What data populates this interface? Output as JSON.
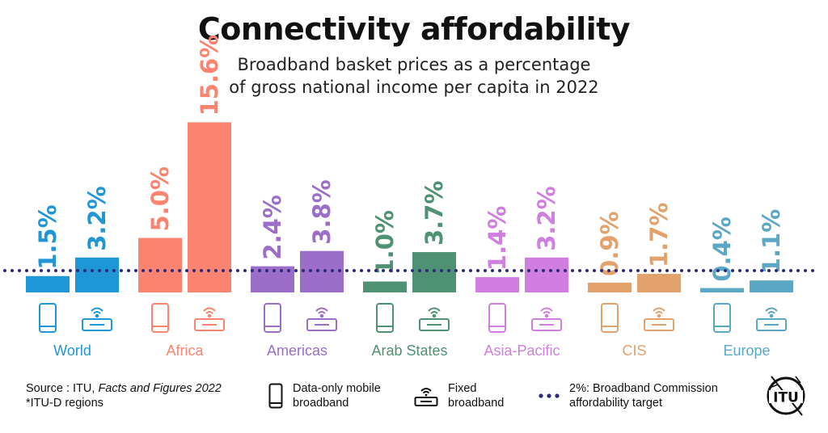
{
  "title": "Connectivity affordability",
  "subtitle_line1": "Broadband basket prices as a percentage",
  "subtitle_line2": "of gross national income per capita in 2022",
  "chart_data": {
    "type": "bar",
    "categories": [
      "World",
      "Africa",
      "Americas",
      "Arab States",
      "Asia-Pacific",
      "CIS",
      "Europe"
    ],
    "series": [
      {
        "name": "Data-only mobile broadband",
        "values": [
          1.5,
          5.0,
          2.4,
          1.0,
          1.4,
          0.9,
          0.4
        ],
        "labels": [
          "1.5%",
          "5.0%",
          "2.4%",
          "1.0%",
          "1.4%",
          "0.9%",
          "0.4%"
        ]
      },
      {
        "name": "Fixed broadband",
        "values": [
          3.2,
          15.6,
          3.8,
          3.7,
          3.2,
          1.7,
          1.1
        ],
        "labels": [
          "3.2%",
          "15.6%",
          "3.8%",
          "3.7%",
          "3.2%",
          "1.7%",
          "1.1%"
        ]
      }
    ],
    "category_colors": [
      "#1f97d6",
      "#fb8470",
      "#9b6ec9",
      "#4f9173",
      "#d07ee0",
      "#e3a26c",
      "#5aa7c6"
    ],
    "target_value": 2.0,
    "target_color": "#2c2a7d",
    "value_suffix": "%"
  },
  "footer": {
    "source_prefix": "Source : ITU, ",
    "source_italic": "Facts and Figures 2022",
    "source_note": "*ITU-D regions",
    "legend_mobile_line1": "Data-only mobile",
    "legend_mobile_line2": "broadband",
    "legend_fixed_line1": "Fixed",
    "legend_fixed_line2": "broadband",
    "legend_target_line1": "2%: Broadband Commission",
    "legend_target_line2": "affordability target",
    "logo_text": "ITU"
  },
  "icons": {
    "mobile": "mobile-phone-icon",
    "fixed": "wifi-router-icon",
    "logo": "itu-logo"
  }
}
